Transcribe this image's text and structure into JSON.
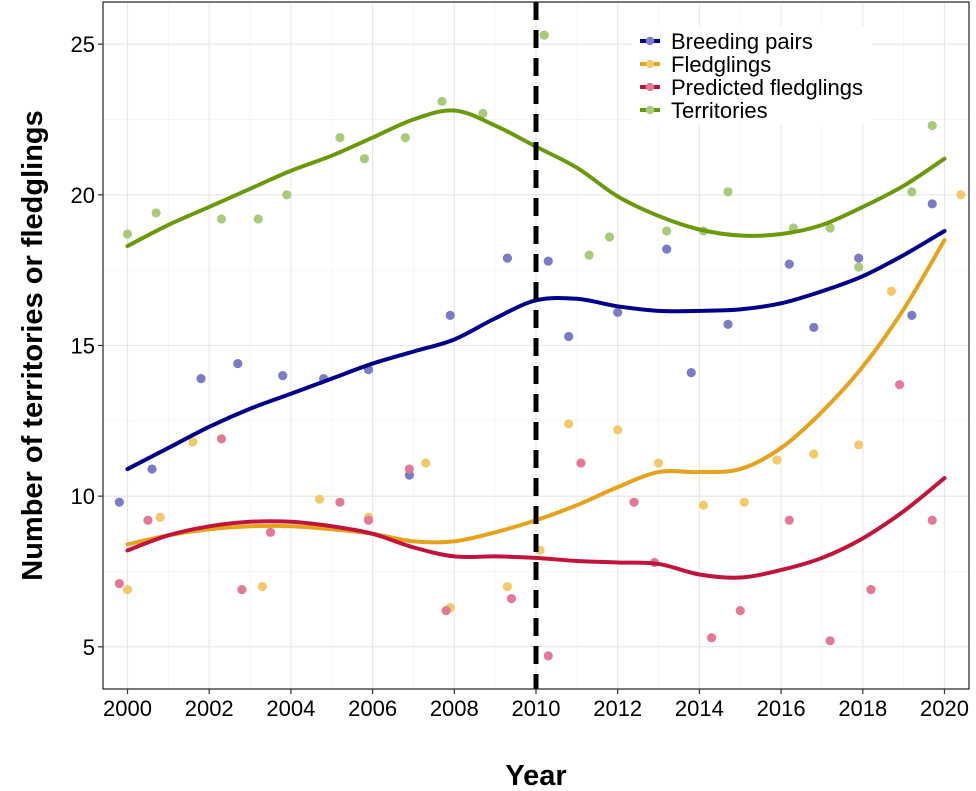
{
  "chart_data": {
    "type": "scatter",
    "title": "",
    "xlabel": "Year",
    "ylabel": "Number of territories or fledglings",
    "xlim": [
      1999.4,
      2020.6
    ],
    "ylim": [
      3.6,
      26.4
    ],
    "xticks": [
      2000,
      2002,
      2004,
      2006,
      2008,
      2010,
      2012,
      2014,
      2016,
      2018,
      2020
    ],
    "xtick_labels": [
      "2000",
      "2002",
      "2004",
      "2006",
      "2008",
      "2010",
      "2012",
      "2014",
      "2016",
      "2018",
      "2020"
    ],
    "yticks": [
      5,
      10,
      15,
      20,
      25
    ],
    "ytick_labels": [
      "5",
      "10",
      "15",
      "20",
      "25"
    ],
    "grid": true,
    "legend_position": "top-right",
    "vline": {
      "x": 2010,
      "style": "dashed",
      "color": "#000000"
    },
    "series": [
      {
        "name": "Breeding pairs",
        "color": "#00008B",
        "point_color": "#7B7BC6",
        "points": [
          [
            1999.8,
            9.8
          ],
          [
            2000.6,
            10.9
          ],
          [
            2001.8,
            13.9
          ],
          [
            2002.7,
            14.4
          ],
          [
            2003.8,
            14.0
          ],
          [
            2004.8,
            13.9
          ],
          [
            2005.9,
            14.2
          ],
          [
            2006.9,
            10.7
          ],
          [
            2007.9,
            16.0
          ],
          [
            2009.3,
            17.9
          ],
          [
            2010.3,
            17.8
          ],
          [
            2010.8,
            15.3
          ],
          [
            2012.0,
            16.1
          ],
          [
            2013.2,
            18.2
          ],
          [
            2013.8,
            14.1
          ],
          [
            2014.7,
            15.7
          ],
          [
            2016.2,
            17.7
          ],
          [
            2016.8,
            15.6
          ],
          [
            2017.9,
            17.9
          ],
          [
            2019.2,
            16.0
          ],
          [
            2019.7,
            19.7
          ]
        ],
        "trend": [
          [
            2000,
            10.9
          ],
          [
            2001,
            11.6
          ],
          [
            2002,
            12.3
          ],
          [
            2003,
            12.9
          ],
          [
            2004,
            13.4
          ],
          [
            2005,
            13.9
          ],
          [
            2006,
            14.4
          ],
          [
            2007,
            14.8
          ],
          [
            2008,
            15.2
          ],
          [
            2009,
            15.9
          ],
          [
            2010,
            16.5
          ],
          [
            2011,
            16.55
          ],
          [
            2012,
            16.3
          ],
          [
            2013,
            16.15
          ],
          [
            2014,
            16.15
          ],
          [
            2015,
            16.2
          ],
          [
            2016,
            16.4
          ],
          [
            2017,
            16.8
          ],
          [
            2018,
            17.3
          ],
          [
            2019,
            18.0
          ],
          [
            2020,
            18.8
          ]
        ]
      },
      {
        "name": "Fledglings",
        "color": "#E6A21A",
        "point_color": "#F2C96B",
        "points": [
          [
            2000.0,
            6.9
          ],
          [
            2000.8,
            9.3
          ],
          [
            2001.6,
            11.8
          ],
          [
            2003.3,
            7.0
          ],
          [
            2004.7,
            9.9
          ],
          [
            2005.9,
            9.3
          ],
          [
            2007.3,
            11.1
          ],
          [
            2007.9,
            6.3
          ],
          [
            2009.3,
            7.0
          ],
          [
            2010.1,
            8.2
          ],
          [
            2010.8,
            12.4
          ],
          [
            2012.0,
            12.2
          ],
          [
            2013.0,
            11.1
          ],
          [
            2014.1,
            9.7
          ],
          [
            2015.1,
            9.8
          ],
          [
            2015.9,
            11.2
          ],
          [
            2016.8,
            11.4
          ],
          [
            2017.9,
            11.7
          ],
          [
            2018.7,
            16.8
          ],
          [
            2020.4,
            20.0
          ]
        ],
        "trend": [
          [
            2000,
            8.4
          ],
          [
            2001,
            8.7
          ],
          [
            2002,
            8.9
          ],
          [
            2003,
            9.0
          ],
          [
            2004,
            9.0
          ],
          [
            2005,
            8.9
          ],
          [
            2006,
            8.75
          ],
          [
            2007,
            8.5
          ],
          [
            2008,
            8.5
          ],
          [
            2009,
            8.8
          ],
          [
            2010,
            9.2
          ],
          [
            2011,
            9.7
          ],
          [
            2012,
            10.3
          ],
          [
            2013,
            10.8
          ],
          [
            2014,
            10.8
          ],
          [
            2015,
            10.9
          ],
          [
            2016,
            11.6
          ],
          [
            2017,
            12.8
          ],
          [
            2018,
            14.3
          ],
          [
            2019,
            16.2
          ],
          [
            2020,
            18.5
          ]
        ]
      },
      {
        "name": "Predicted fledglings",
        "color": "#C0143C",
        "point_color": "#E27A95",
        "points": [
          [
            1999.8,
            7.1
          ],
          [
            2000.5,
            9.2
          ],
          [
            2002.3,
            11.9
          ],
          [
            2002.8,
            6.9
          ],
          [
            2003.5,
            8.8
          ],
          [
            2005.2,
            9.8
          ],
          [
            2005.9,
            9.2
          ],
          [
            2006.9,
            10.9
          ],
          [
            2007.8,
            6.2
          ],
          [
            2009.4,
            6.6
          ],
          [
            2010.3,
            4.7
          ],
          [
            2011.1,
            11.1
          ],
          [
            2012.4,
            9.8
          ],
          [
            2012.9,
            7.8
          ],
          [
            2014.3,
            5.3
          ],
          [
            2015.0,
            6.2
          ],
          [
            2016.2,
            9.2
          ],
          [
            2017.2,
            5.2
          ],
          [
            2018.2,
            6.9
          ],
          [
            2018.9,
            13.7
          ],
          [
            2019.7,
            9.2
          ]
        ],
        "trend": [
          [
            2000,
            8.2
          ],
          [
            2001,
            8.7
          ],
          [
            2002,
            9.0
          ],
          [
            2003,
            9.15
          ],
          [
            2004,
            9.15
          ],
          [
            2005,
            9.0
          ],
          [
            2006,
            8.75
          ],
          [
            2007,
            8.3
          ],
          [
            2008,
            8.0
          ],
          [
            2009,
            8.0
          ],
          [
            2010,
            7.95
          ],
          [
            2011,
            7.85
          ],
          [
            2012,
            7.8
          ],
          [
            2013,
            7.75
          ],
          [
            2014,
            7.4
          ],
          [
            2015,
            7.3
          ],
          [
            2016,
            7.55
          ],
          [
            2017,
            7.95
          ],
          [
            2018,
            8.6
          ],
          [
            2019,
            9.5
          ],
          [
            2020,
            10.6
          ]
        ]
      },
      {
        "name": "Territories",
        "color": "#6A9A0C",
        "point_color": "#A9CA7A",
        "points": [
          [
            2000.0,
            18.7
          ],
          [
            2000.7,
            19.4
          ],
          [
            2002.3,
            19.2
          ],
          [
            2003.2,
            19.2
          ],
          [
            2003.9,
            20.0
          ],
          [
            2005.2,
            21.9
          ],
          [
            2005.8,
            21.2
          ],
          [
            2006.8,
            21.9
          ],
          [
            2007.7,
            23.1
          ],
          [
            2008.7,
            22.7
          ],
          [
            2010.2,
            25.3
          ],
          [
            2011.3,
            18.0
          ],
          [
            2011.8,
            18.6
          ],
          [
            2013.2,
            18.8
          ],
          [
            2014.1,
            18.8
          ],
          [
            2014.7,
            20.1
          ],
          [
            2016.3,
            18.9
          ],
          [
            2017.2,
            18.9
          ],
          [
            2017.9,
            17.6
          ],
          [
            2019.2,
            20.1
          ],
          [
            2019.7,
            22.3
          ]
        ],
        "trend": [
          [
            2000,
            18.3
          ],
          [
            2001,
            19.0
          ],
          [
            2002,
            19.6
          ],
          [
            2003,
            20.2
          ],
          [
            2004,
            20.8
          ],
          [
            2005,
            21.3
          ],
          [
            2006,
            21.9
          ],
          [
            2007,
            22.5
          ],
          [
            2008,
            22.8
          ],
          [
            2009,
            22.3
          ],
          [
            2010,
            21.6
          ],
          [
            2011,
            20.9
          ],
          [
            2012,
            19.95
          ],
          [
            2013,
            19.3
          ],
          [
            2014,
            18.85
          ],
          [
            2015,
            18.65
          ],
          [
            2016,
            18.7
          ],
          [
            2017,
            19.0
          ],
          [
            2018,
            19.6
          ],
          [
            2019,
            20.3
          ],
          [
            2020,
            21.2
          ]
        ]
      }
    ]
  }
}
